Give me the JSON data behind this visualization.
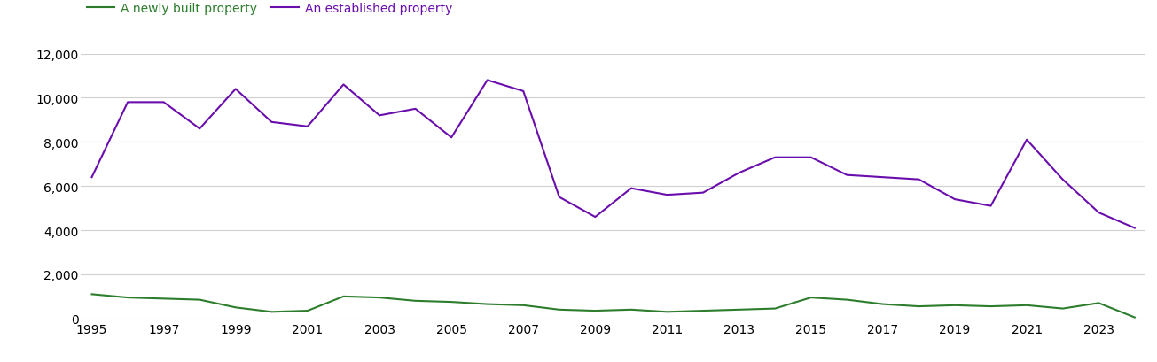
{
  "years": [
    1995,
    1996,
    1997,
    1998,
    1999,
    2000,
    2001,
    2002,
    2003,
    2004,
    2005,
    2006,
    2007,
    2008,
    2009,
    2010,
    2011,
    2012,
    2013,
    2014,
    2015,
    2016,
    2017,
    2018,
    2019,
    2020,
    2021,
    2022,
    2023,
    2024
  ],
  "new_homes": [
    1100,
    950,
    900,
    850,
    500,
    300,
    350,
    1000,
    950,
    800,
    750,
    650,
    600,
    400,
    350,
    400,
    300,
    350,
    400,
    450,
    950,
    850,
    650,
    550,
    600,
    550,
    600,
    450,
    700,
    50
  ],
  "established_homes": [
    6400,
    9800,
    9800,
    8600,
    10400,
    8900,
    8700,
    10600,
    9200,
    9500,
    8200,
    10800,
    10300,
    5500,
    4600,
    5900,
    5600,
    5700,
    6600,
    7300,
    7300,
    6500,
    6400,
    6300,
    5400,
    5100,
    8100,
    6300,
    4800,
    4100
  ],
  "new_homes_color": "#2d7d2d",
  "established_homes_color": "#6a0dad",
  "new_homes_label": "A newly built property",
  "established_homes_label": "An established property",
  "ylim": [
    0,
    12000
  ],
  "yticks": [
    0,
    2000,
    4000,
    6000,
    8000,
    10000,
    12000
  ],
  "xtick_years": [
    1995,
    1997,
    1999,
    2001,
    2003,
    2005,
    2007,
    2009,
    2011,
    2013,
    2015,
    2017,
    2019,
    2021,
    2023
  ],
  "background_color": "#ffffff",
  "grid_color": "#d0d0d0",
  "line_width": 1.5,
  "legend_fontsize": 10,
  "tick_fontsize": 10
}
